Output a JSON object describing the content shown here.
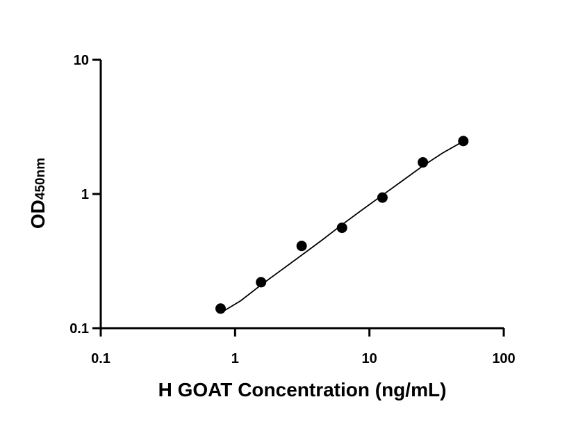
{
  "chart_data": {
    "type": "scatter",
    "xlabel": "H GOAT Concentration (ng/mL)",
    "ylabel_main": "OD",
    "ylabel_sub": "450nm",
    "x_scale": "log",
    "y_scale": "log",
    "xlim": [
      0.1,
      100
    ],
    "ylim": [
      0.1,
      10
    ],
    "x_ticks": [
      0.1,
      1,
      10,
      100
    ],
    "x_tick_labels": [
      "0.1",
      "1",
      "10",
      "100"
    ],
    "y_ticks": [
      0.1,
      1,
      10
    ],
    "y_tick_labels": [
      "0.1",
      "1",
      "10"
    ],
    "grid": false,
    "points": [
      {
        "x": 0.78,
        "y": 0.14
      },
      {
        "x": 1.56,
        "y": 0.22
      },
      {
        "x": 3.13,
        "y": 0.41
      },
      {
        "x": 6.25,
        "y": 0.56
      },
      {
        "x": 12.5,
        "y": 0.94
      },
      {
        "x": 25,
        "y": 1.72
      },
      {
        "x": 50,
        "y": 2.48
      }
    ],
    "fit_curve": [
      {
        "x": 0.78,
        "y": 0.13
      },
      {
        "x": 1.1,
        "y": 0.16
      },
      {
        "x": 1.56,
        "y": 0.21
      },
      {
        "x": 2.2,
        "y": 0.27
      },
      {
        "x": 3.13,
        "y": 0.35
      },
      {
        "x": 4.4,
        "y": 0.45
      },
      {
        "x": 6.25,
        "y": 0.59
      },
      {
        "x": 8.8,
        "y": 0.76
      },
      {
        "x": 12.5,
        "y": 0.98
      },
      {
        "x": 17.7,
        "y": 1.26
      },
      {
        "x": 25,
        "y": 1.62
      },
      {
        "x": 35,
        "y": 2.02
      },
      {
        "x": 50,
        "y": 2.47
      }
    ],
    "colors": {
      "axis": "#000000",
      "marker": "#000000",
      "curve": "#000000",
      "background": "#ffffff"
    }
  }
}
